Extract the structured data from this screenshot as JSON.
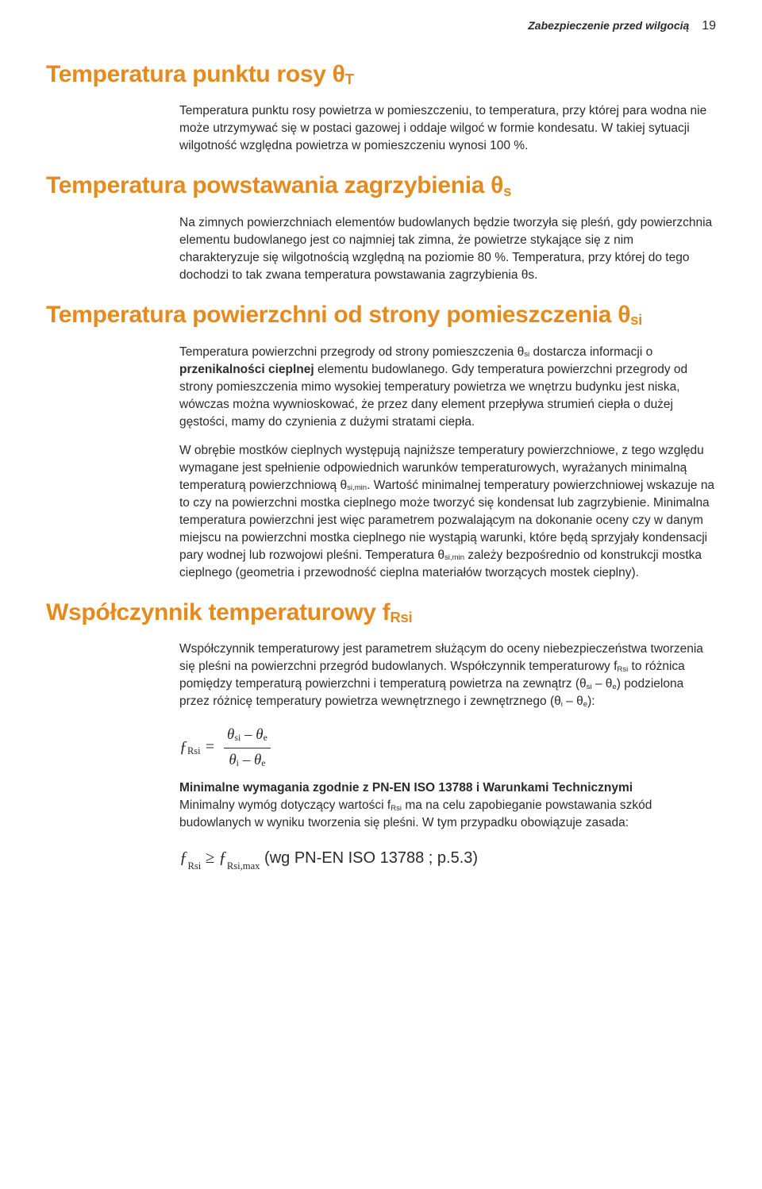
{
  "header": {
    "label": "Zabezpieczenie przed wilgocią",
    "page": "19"
  },
  "sections": {
    "s1": {
      "title_plain": "Temperatura punktu rosy θ",
      "title_sub": "T",
      "body": "Temperatura punktu rosy powietrza w pomieszczeniu, to temperatura, przy której para wodna nie może utrzymywać się w postaci gazowej i oddaje wilgoć w formie kondesatu. W takiej sytuacji wilgotność względna powietrza w pomieszczeniu wynosi 100 %."
    },
    "s2": {
      "title_plain": "Temperatura powstawania zagrzybienia θ",
      "title_sub": "s",
      "body": "Na zimnych powierzchniach elementów budowlanych będzie tworzyła się pleśń, gdy powierzchnia elementu budowlanego jest co najmniej tak zimna, że powietrze stykające się z nim charakteryzuje się wilgotnością względną na poziomie 80 %. Temperatura, przy której do tego dochodzi to tak zwana temperatura powstawania zagrzybienia θs."
    },
    "s3": {
      "title_plain": "Temperatura powierzchni od strony pomieszczenia θ",
      "title_sub": "si",
      "p1a": "Temperatura powierzchni przegrody od strony pomieszczenia θ",
      "p1a_sub": "si",
      "p1b": " dostarcza informacji o ",
      "p1_strong": "przenikalności cieplnej",
      "p1c": " elementu budowlanego. Gdy temperatura powierzchni przegrody od strony pomieszczenia mimo wysokiej temperatury powietrza we wnętrzu budynku jest niska, wówczas można wywnioskować, że przez dany element przepływa strumień ciepła o dużej gęstości, mamy do czynienia z dużymi stratami ciepła.",
      "p2a": "W obrębie mostków cieplnych występują najniższe temperatury powierzchniowe, z tego względu wymagane jest spełnienie odpowiednich warunków temperaturowych, wyrażanych minimalną temperaturą powierzchniową θ",
      "p2a_sub": "si,min",
      "p2b": ". Wartość minimalnej temperatury powierzchniowej wskazuje na to czy na powierzchni mostka cieplnego może tworzyć się kondensat lub zagrzybienie. Minimalna temperatura powierzchni jest więc parametrem pozwalającym na dokonanie oceny czy w danym miejscu na powierzchni mostka cieplnego nie wystąpią warunki, które będą sprzyjały kondensacji pary wodnej lub rozwojowi pleśni. Temperatura θ",
      "p2b_sub": "si,min",
      "p2c": " zależy bezpośrednio od konstrukcji mostka cieplnego (geometria i przewodność cieplna materiałów tworzących mostek cieplny)."
    },
    "s4": {
      "title_plain": "Współczynnik temperaturowy f",
      "title_sub": "Rsi",
      "p1a": "Współczynnik temperaturowy jest parametrem służącym do oceny niebezpieczeństwa tworzenia się pleśni na powierzchni przegród budowlanych. Współczynnik temperaturowy f",
      "p1a_sub": "Rsi",
      "p1b": " to różnica pomiędzy temperaturą powierzchni i temperaturą powietrza na zewnątrz (θ",
      "p1b_sub1": "si",
      "p1b_mid": " – θ",
      "p1b_sub2": "e",
      "p1c": ") podzielona przez różnicę temperatury powietrza wewnętrznego i zewnętrznego (θ",
      "p1c_sub1": "i",
      "p1c_mid": " – θ",
      "p1c_sub2": "e",
      "p1d": "):",
      "formula": {
        "lhs_f": "ƒ",
        "lhs_sub": "Rsi",
        "eq": " = ",
        "num_a": "θ",
        "num_a_sub": "si",
        "num_mid": " – θ",
        "num_b_sub": "e",
        "den_a": "θ",
        "den_a_sub": "i",
        "den_mid": " – θ",
        "den_b_sub": "e"
      },
      "p2_strong": "Minimalne wymagania zgodnie z PN-EN ISO 13788 i Warunkami Technicznymi",
      "p2a": "Minimalny wymóg dotyczący wartości f",
      "p2a_sub": "Rsi",
      "p2b": " ma na celu zapobieganie powstawania szkód budowlanych w wyniku tworzenia się pleśni. W tym przypadku obowiązuje zasada:",
      "final": {
        "f1": "ƒ",
        "f1_sub": "Rsi",
        "op": " ≥ ",
        "f2": "ƒ",
        "f2_sub": "Rsi,max",
        "tail": " (wg PN-EN ISO 13788 ; p.5.3)"
      }
    }
  }
}
